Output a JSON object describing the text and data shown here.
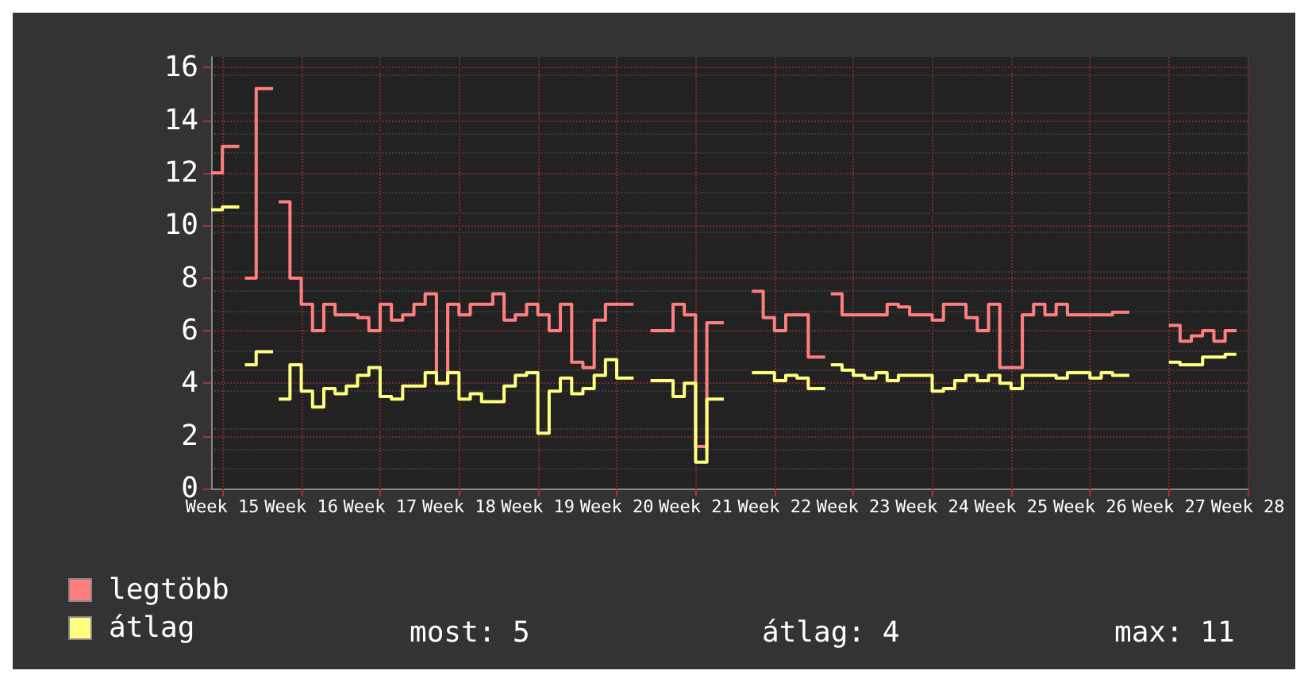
{
  "chart_data": {
    "type": "step",
    "categories": [
      null,
      null,
      "Week 15",
      null,
      null,
      null,
      null,
      null,
      null,
      null,
      null,
      null,
      null,
      null,
      null,
      null,
      "Week 16",
      null,
      null,
      null,
      null,
      null,
      null,
      null,
      null,
      null,
      null,
      null,
      null,
      null,
      "Week 17",
      null,
      null,
      null,
      null,
      null,
      null,
      null,
      null,
      null,
      null,
      null,
      null,
      null,
      "Week 18",
      null,
      null,
      null,
      null,
      null,
      null,
      null,
      null,
      null,
      null,
      null,
      null,
      null,
      "Week 19",
      null,
      null,
      null,
      null,
      null,
      null,
      null,
      null,
      null,
      null,
      null,
      null,
      null,
      "Week 20",
      null,
      null,
      null,
      null,
      null,
      null,
      null,
      null,
      null,
      null,
      null,
      null,
      null,
      "Week 21",
      null,
      null,
      null,
      null,
      null,
      null,
      null,
      null,
      null,
      null,
      null,
      null,
      null,
      "Week 22",
      null,
      null,
      null,
      null,
      null,
      null,
      null,
      null,
      null,
      null,
      null,
      null,
      null,
      "Week 23",
      null,
      null,
      null,
      null,
      null,
      null,
      null,
      null,
      null,
      null,
      null,
      null,
      null,
      "Week 24",
      null,
      null,
      null,
      null,
      null,
      null,
      null,
      null,
      null,
      null,
      null,
      null,
      null,
      "Week 25",
      null,
      null,
      null,
      null,
      null,
      null,
      null,
      null,
      null,
      null,
      null,
      null,
      null,
      "Week 26",
      null,
      null,
      null,
      null,
      null,
      null,
      null,
      null,
      null,
      null,
      null,
      null,
      null,
      "Week 27",
      null,
      null,
      null,
      null,
      null,
      null,
      null,
      null,
      null,
      null,
      null,
      null,
      null,
      "Week 28"
    ],
    "series": [
      {
        "name": "legtöbb",
        "color": "#ff7f7f",
        "values": [
          12,
          12,
          13,
          13,
          13,
          null,
          8,
          8,
          15.2,
          15.2,
          15.2,
          null,
          10.9,
          10.9,
          8,
          8,
          7,
          7,
          6,
          6,
          7,
          7,
          6.6,
          6.6,
          6.6,
          6.6,
          6.5,
          6.5,
          6,
          6,
          7,
          7,
          6.4,
          6.4,
          6.6,
          6.6,
          7,
          7,
          7.4,
          7.4,
          4,
          4,
          7,
          7,
          6.6,
          6.6,
          7,
          7,
          7,
          7,
          7.4,
          7.4,
          6.4,
          6.4,
          6.6,
          6.6,
          7,
          7,
          6.6,
          6.6,
          6,
          6,
          7,
          7,
          4.8,
          4.8,
          4.6,
          4.6,
          6.4,
          6.4,
          7,
          7,
          7,
          7,
          7,
          null,
          null,
          null,
          6,
          6,
          6,
          6,
          7,
          7,
          6.6,
          6.6,
          1.6,
          1.6,
          6.3,
          6.3,
          6.3,
          null,
          null,
          null,
          null,
          null,
          7.5,
          7.5,
          6.5,
          6.5,
          6,
          6,
          6.6,
          6.6,
          6.6,
          6.6,
          5,
          5,
          5,
          null,
          7.4,
          7.4,
          6.6,
          6.6,
          6.6,
          6.6,
          6.6,
          6.6,
          6.6,
          6.6,
          7,
          7,
          6.9,
          6.9,
          6.6,
          6.6,
          6.6,
          6.6,
          6.4,
          6.4,
          7,
          7,
          7,
          7,
          6.5,
          6.5,
          6,
          6,
          7,
          7,
          4.6,
          4.6,
          4.6,
          4.6,
          6.6,
          6.6,
          7,
          7,
          6.6,
          6.6,
          7,
          7,
          6.6,
          6.6,
          6.6,
          6.6,
          6.6,
          6.6,
          6.6,
          6.6,
          6.7,
          6.7,
          6.7,
          null,
          null,
          null,
          null,
          null,
          null,
          null,
          6.2,
          6.2,
          5.6,
          5.6,
          5.8,
          5.8,
          6,
          6,
          5.6,
          5.6,
          6,
          6,
          6,
          null,
          null
        ]
      },
      {
        "name": "átlag",
        "color": "#ffff7f",
        "values": [
          10.6,
          10.6,
          10.7,
          10.7,
          10.7,
          null,
          4.7,
          4.7,
          5.2,
          5.2,
          5.2,
          null,
          3.4,
          3.4,
          4.7,
          4.7,
          3.7,
          3.7,
          3.1,
          3.1,
          3.8,
          3.8,
          3.6,
          3.6,
          3.9,
          3.9,
          4.3,
          4.3,
          4.6,
          4.6,
          3.5,
          3.5,
          3.4,
          3.4,
          3.9,
          3.9,
          3.9,
          3.9,
          4.4,
          4.4,
          4.0,
          4.0,
          4.4,
          4.4,
          3.4,
          3.4,
          3.6,
          3.6,
          3.3,
          3.3,
          3.3,
          3.3,
          3.9,
          3.9,
          4.3,
          4.3,
          4.4,
          4.4,
          2.1,
          2.1,
          3.7,
          3.7,
          4.2,
          4.2,
          3.6,
          3.6,
          3.8,
          3.8,
          4.3,
          4.3,
          4.9,
          4.9,
          4.2,
          4.2,
          4.2,
          null,
          null,
          null,
          4.1,
          4.1,
          4.1,
          4.1,
          3.5,
          3.5,
          4.0,
          4.0,
          1.0,
          1.0,
          3.4,
          3.4,
          3.4,
          null,
          null,
          null,
          null,
          null,
          4.4,
          4.4,
          4.4,
          4.4,
          4.1,
          4.1,
          4.3,
          4.3,
          4.2,
          4.2,
          3.8,
          3.8,
          3.8,
          null,
          4.7,
          4.7,
          4.5,
          4.5,
          4.3,
          4.3,
          4.2,
          4.2,
          4.4,
          4.4,
          4.1,
          4.1,
          4.3,
          4.3,
          4.3,
          4.3,
          4.3,
          4.3,
          3.7,
          3.7,
          3.8,
          3.8,
          4.1,
          4.1,
          4.3,
          4.3,
          4.1,
          4.1,
          4.3,
          4.3,
          4.0,
          4.0,
          3.8,
          3.8,
          4.3,
          4.3,
          4.3,
          4.3,
          4.3,
          4.3,
          4.2,
          4.2,
          4.4,
          4.4,
          4.4,
          4.4,
          4.2,
          4.2,
          4.4,
          4.4,
          4.3,
          4.3,
          4.3,
          null,
          null,
          null,
          null,
          null,
          null,
          null,
          4.8,
          4.8,
          4.7,
          4.7,
          4.7,
          4.7,
          5.0,
          5.0,
          5.0,
          5.0,
          5.1,
          5.1,
          5.1,
          null,
          null
        ]
      }
    ],
    "ylim": [
      0,
      16.4
    ],
    "yticks": [
      0,
      2,
      4,
      6,
      8,
      10,
      12,
      14,
      16
    ],
    "grid": true,
    "marker": "none",
    "legend": "bottom left",
    "annotations": [
      "most: 5",
      "átlag: 4",
      "max: 11"
    ]
  }
}
